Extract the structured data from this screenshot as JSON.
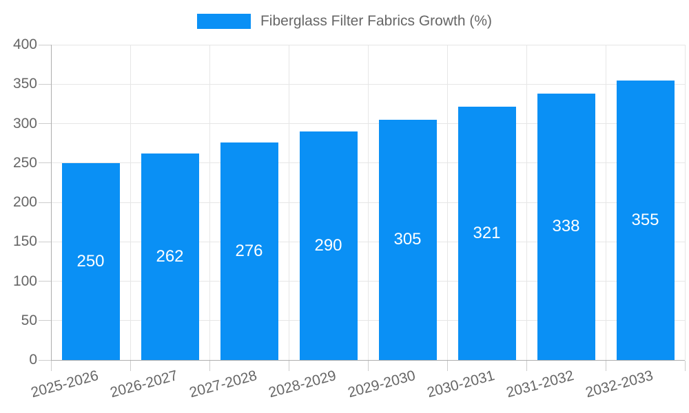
{
  "legend": {
    "label": "Fiberglass Filter Fabrics Growth (%)",
    "swatch_color": "#0A90F5"
  },
  "chart_data": {
    "type": "bar",
    "title": "Fiberglass Filter Fabrics Growth (%)",
    "categories": [
      "2025-2026",
      "2026-2027",
      "2027-2028",
      "2028-2029",
      "2029-2030",
      "2030-2031",
      "2031-2032",
      "2032-2033"
    ],
    "values": [
      250,
      262,
      276,
      290,
      305,
      321,
      338,
      355
    ],
    "xlabel": "",
    "ylabel": "",
    "ylim": [
      0,
      400
    ],
    "yticks": [
      0,
      50,
      100,
      150,
      200,
      250,
      300,
      350,
      400
    ],
    "grid": true,
    "legend_position": "top-center",
    "colors": {
      "bar": "#0A90F5",
      "value_label": "#FFFFFF",
      "axis_text": "#666666",
      "gridline": "#E6E6E6",
      "axis_line": "#ADADAD",
      "tick": "#CCCCCC"
    }
  }
}
